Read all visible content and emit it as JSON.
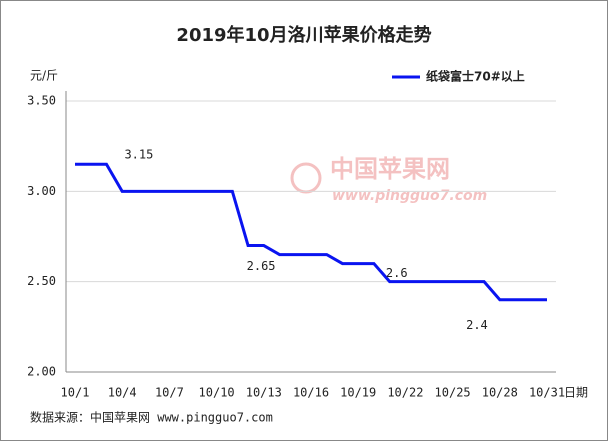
{
  "chart_data": {
    "type": "line",
    "title": "2019年10月洛川苹果价格走势",
    "y_axis_label": "元/斤",
    "x_axis_label": "日期",
    "source": "数据来源：中国苹果网 www.pingguo7.com",
    "watermark": {
      "name": "中国苹果网",
      "url": "www.pingguo7.com"
    },
    "categories": [
      "10/1",
      null,
      null,
      "10/4",
      null,
      null,
      "10/7",
      null,
      null,
      "10/10",
      null,
      null,
      "10/13",
      null,
      null,
      "10/16",
      null,
      null,
      "10/19",
      null,
      null,
      "10/22",
      null,
      null,
      "10/25",
      null,
      null,
      "10/28",
      null,
      null,
      "10/31"
    ],
    "series": [
      {
        "name": "纸袋富士70#以上",
        "color": "#0a14f0",
        "values": [
          3.15,
          3.15,
          3.15,
          3.0,
          3.0,
          3.0,
          3.0,
          3.0,
          3.0,
          3.0,
          3.0,
          2.7,
          2.7,
          2.65,
          2.65,
          2.65,
          2.65,
          2.6,
          2.6,
          2.6,
          2.5,
          2.5,
          2.5,
          2.5,
          2.5,
          2.5,
          2.5,
          2.4,
          2.4,
          2.4,
          2.4
        ]
      }
    ],
    "ylim": [
      2.0,
      3.5
    ],
    "yticks": [
      {
        "value": 2.0,
        "label": "2.00"
      },
      {
        "value": 2.5,
        "label": "2.50"
      },
      {
        "value": 3.0,
        "label": "3.00"
      },
      {
        "value": 3.5,
        "label": "3.50"
      }
    ],
    "grid": true,
    "legend": "top-right"
  }
}
